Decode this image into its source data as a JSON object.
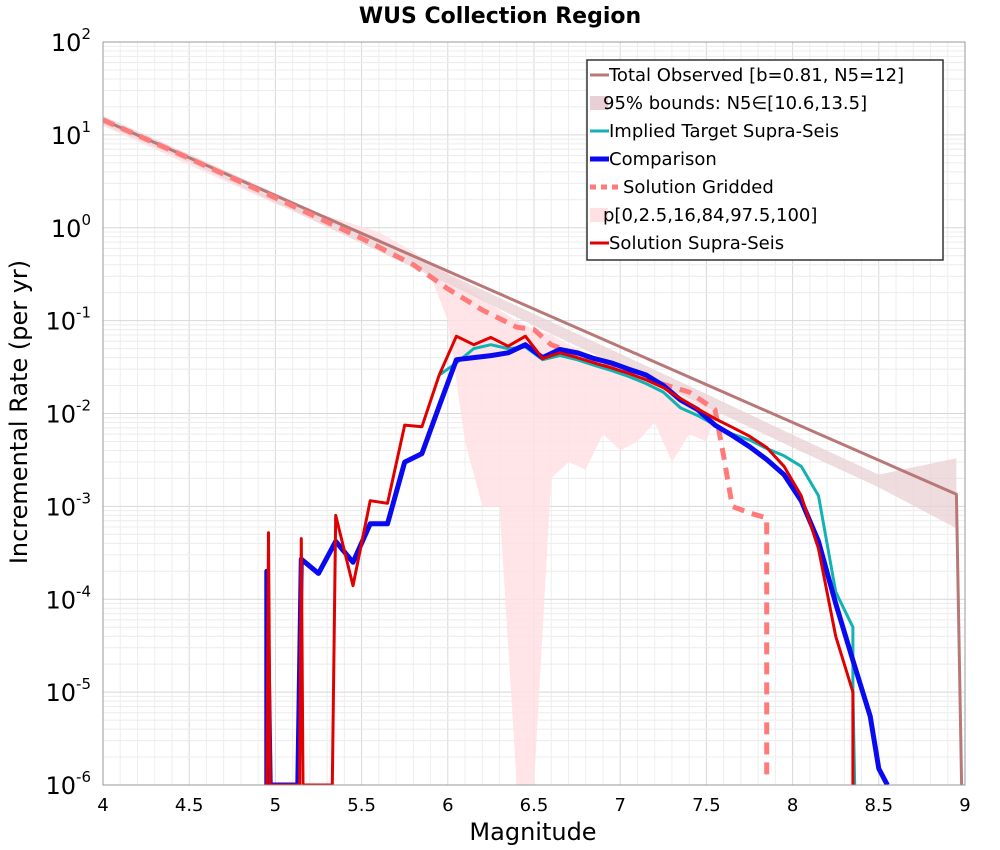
{
  "chart_data": {
    "type": "line",
    "title": "WUS Collection Region",
    "xlabel": "Magnitude",
    "ylabel": "Incremental Rate (per yr)",
    "xlim": [
      4,
      9
    ],
    "ylim": [
      1e-06,
      100
    ],
    "yscale": "log",
    "grid": true,
    "legend_position": "top-right",
    "x_ticks": [
      "4",
      "4.5",
      "5",
      "5.5",
      "6",
      "6.5",
      "7",
      "7.5",
      "8",
      "8.5",
      "9"
    ],
    "y_ticks": [
      {
        "base": "10",
        "exp": "-6"
      },
      {
        "base": "10",
        "exp": "-5"
      },
      {
        "base": "10",
        "exp": "-4"
      },
      {
        "base": "10",
        "exp": "-3"
      },
      {
        "base": "10",
        "exp": "-2"
      },
      {
        "base": "10",
        "exp": "-1"
      },
      {
        "base": "10",
        "exp": "0"
      },
      {
        "base": "10",
        "exp": "1"
      },
      {
        "base": "10",
        "exp": "2"
      }
    ],
    "legend": [
      {
        "label": "Total Observed [b=0.81, N5=12]",
        "kind": "line",
        "color": "#b87878",
        "width": 3
      },
      {
        "label": "95% bounds: N5∈[10.6,13.5]",
        "kind": "band",
        "color": "#e8d0d4"
      },
      {
        "label": "Implied Target Supra-Seis",
        "kind": "line",
        "color": "#11b2b2",
        "width": 3
      },
      {
        "label": "Comparison",
        "kind": "line",
        "color": "#0a0af0",
        "width": 5
      },
      {
        "label": "Solution Gridded",
        "kind": "dashed",
        "color": "#ff7a7a",
        "width": 5
      },
      {
        "label": "p[0,2.5,16,84,97.5,100]",
        "kind": "band",
        "color": "#ffe0e3"
      },
      {
        "label": "Solution Supra-Seis",
        "kind": "line",
        "color": "#e00000",
        "width": 3
      }
    ],
    "bounds_95": {
      "color": "#e8d0d4",
      "x": [
        4.0,
        4.5,
        5.0,
        5.5,
        6.0,
        6.5,
        7.0,
        7.5,
        8.0,
        8.5,
        8.95
      ],
      "lower": [
        13.0,
        5.1,
        1.85,
        0.68,
        0.25,
        0.088,
        0.032,
        0.0118,
        0.0043,
        0.0016,
        0.00058
      ],
      "upper": [
        16.0,
        6.2,
        2.35,
        0.86,
        0.32,
        0.118,
        0.044,
        0.0162,
        0.0059,
        0.0022,
        0.0033
      ]
    },
    "solution_band": {
      "color": "#ffe0e3",
      "x": [
        4.0,
        5.0,
        5.6,
        5.8,
        5.9,
        6.0,
        6.1,
        6.2,
        6.3,
        6.4,
        6.5,
        6.6,
        6.7,
        6.8,
        6.9,
        7.0,
        7.1,
        7.2,
        7.3,
        7.4,
        7.5,
        7.55
      ],
      "upper": [
        14.0,
        2.0,
        0.9,
        0.55,
        0.42,
        0.32,
        0.24,
        0.17,
        0.13,
        0.1,
        0.08,
        0.07,
        0.055,
        0.045,
        0.038,
        0.03,
        0.025,
        0.02,
        0.017,
        0.014,
        0.012,
        0.011
      ],
      "lower": [
        12.5,
        1.8,
        0.75,
        0.45,
        0.3,
        0.1,
        0.005,
        0.001,
        0.001,
        1e-06,
        1e-06,
        0.002,
        0.003,
        0.0025,
        0.006,
        0.004,
        0.005,
        0.008,
        0.003,
        0.006,
        0.005,
        0.009
      ]
    },
    "series": [
      {
        "name": "Total Observed [b=0.81, N5=12]",
        "color": "#b87878",
        "width": 3,
        "dash": "",
        "x": [
          4.0,
          8.95,
          8.98
        ],
        "y": [
          14.5,
          0.00135,
          1e-06
        ]
      },
      {
        "name": "Solution Gridded",
        "color": "#ff7a7a",
        "width": 5,
        "dash": "12,8",
        "x": [
          4.0,
          4.5,
          5.0,
          5.5,
          5.8,
          6.0,
          6.2,
          6.4,
          6.5,
          6.6,
          6.8,
          7.0,
          7.2,
          7.4,
          7.55,
          7.6,
          7.65,
          7.75,
          7.85,
          7.85
        ],
        "y": [
          14.5,
          5.6,
          2.1,
          0.77,
          0.4,
          0.22,
          0.13,
          0.085,
          0.08,
          0.055,
          0.04,
          0.03,
          0.022,
          0.017,
          0.011,
          0.0035,
          0.001,
          0.00085,
          0.00075,
          1.2e-06
        ]
      },
      {
        "name": "Implied Target Supra-Seis",
        "color": "#11b2b2",
        "width": 3,
        "dash": "",
        "x": [
          5.95,
          6.05,
          6.15,
          6.25,
          6.35,
          6.45,
          6.55,
          6.65,
          6.75,
          6.85,
          6.95,
          7.05,
          7.15,
          7.25,
          7.35,
          7.45,
          7.55,
          7.65,
          7.75,
          7.85,
          7.95,
          8.05,
          8.15,
          8.25,
          8.35,
          8.35,
          8.36
        ],
        "y": [
          0.026,
          0.035,
          0.05,
          0.055,
          0.05,
          0.052,
          0.038,
          0.042,
          0.038,
          0.033,
          0.029,
          0.025,
          0.021,
          0.017,
          0.0115,
          0.0095,
          0.0075,
          0.006,
          0.0052,
          0.0042,
          0.0035,
          0.0027,
          0.0013,
          0.00012,
          5e-05,
          1e-05,
          1e-06
        ]
      },
      {
        "name": "Comparison",
        "color": "#0a0af0",
        "width": 5,
        "dash": "",
        "x": [
          4.95,
          4.95,
          4.97,
          4.98,
          5.13,
          5.15,
          5.15,
          5.25,
          5.35,
          5.45,
          5.55,
          5.65,
          5.75,
          5.85,
          5.95,
          6.05,
          6.15,
          6.25,
          6.35,
          6.45,
          6.55,
          6.65,
          6.75,
          6.85,
          6.95,
          7.05,
          7.15,
          7.25,
          7.35,
          7.45,
          7.55,
          7.65,
          7.75,
          7.85,
          7.95,
          8.05,
          8.15,
          8.25,
          8.35,
          8.45,
          8.5,
          8.55
        ],
        "y": [
          1e-06,
          0.0002,
          1e-06,
          1e-06,
          1e-06,
          0.00027,
          0.00027,
          0.00019,
          0.00042,
          0.00025,
          0.00065,
          0.00065,
          0.003,
          0.0037,
          0.012,
          0.038,
          0.04,
          0.042,
          0.045,
          0.055,
          0.04,
          0.049,
          0.045,
          0.039,
          0.035,
          0.03,
          0.026,
          0.02,
          0.014,
          0.011,
          0.0075,
          0.0058,
          0.0044,
          0.0032,
          0.0022,
          0.00115,
          0.00042,
          9e-05,
          2.2e-05,
          5.5e-06,
          1.5e-06,
          1e-06
        ]
      },
      {
        "name": "Solution Supra-Seis",
        "color": "#e00000",
        "width": 3,
        "dash": "",
        "x": [
          4.95,
          4.96,
          4.97,
          5.14,
          5.15,
          5.16,
          5.33,
          5.35,
          5.45,
          5.55,
          5.65,
          5.75,
          5.85,
          5.95,
          6.05,
          6.15,
          6.25,
          6.35,
          6.45,
          6.55,
          6.65,
          6.75,
          6.85,
          6.95,
          7.05,
          7.15,
          7.25,
          7.35,
          7.45,
          7.55,
          7.65,
          7.75,
          7.85,
          7.95,
          8.05,
          8.15,
          8.25,
          8.35,
          8.35,
          8.36
        ],
        "y": [
          1e-06,
          0.00052,
          1e-06,
          1e-06,
          0.00045,
          1e-06,
          1e-06,
          0.0008,
          0.00014,
          0.00115,
          0.00108,
          0.0075,
          0.0072,
          0.026,
          0.068,
          0.055,
          0.066,
          0.053,
          0.068,
          0.039,
          0.045,
          0.04,
          0.035,
          0.031,
          0.027,
          0.023,
          0.019,
          0.0145,
          0.0112,
          0.0088,
          0.0071,
          0.0057,
          0.0043,
          0.0027,
          0.0013,
          0.00035,
          4e-05,
          1e-05,
          1e-06,
          1e-06
        ]
      }
    ]
  }
}
